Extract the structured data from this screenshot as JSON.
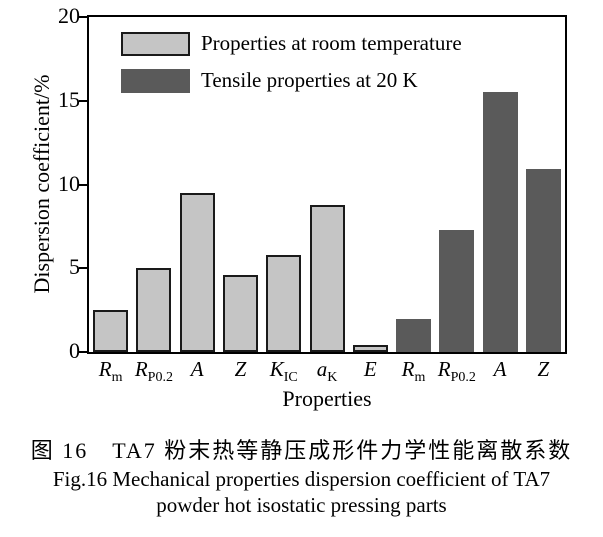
{
  "figure": {
    "caption_zh": "图 16　TA7 粉末热等静压成形件力学性能离散系数",
    "caption_en_line1": "Fig.16 Mechanical properties dispersion coefficient of TA7",
    "caption_en_line2": "powder hot isostatic pressing parts"
  },
  "chart_data": {
    "type": "bar",
    "title": "",
    "xlabel": "Properties",
    "ylabel": "Dispersion coefficient/%",
    "ylim": [
      0,
      20
    ],
    "yticks": [
      "0",
      "5",
      "10",
      "15",
      "20"
    ],
    "grid": false,
    "legend_position": "top-left",
    "axis_color": "#000000",
    "legend": [
      {
        "label": "Properties at room temperature",
        "color": "#c5c5c5",
        "border_color": "#1a1a1a",
        "bordered": true
      },
      {
        "label": "Tensile properties at 20 K",
        "color": "#5a5a5a",
        "border_color": "#5a5a5a",
        "bordered": false
      }
    ],
    "bars": [
      {
        "label_main": "R",
        "label_sub": "m",
        "value": 2.5,
        "series": 0
      },
      {
        "label_main": "R",
        "label_sub": "P0.2",
        "value": 5.0,
        "series": 0
      },
      {
        "label_main": "A",
        "label_sub": "",
        "value": 9.5,
        "series": 0
      },
      {
        "label_main": "Z",
        "label_sub": "",
        "value": 4.6,
        "series": 0
      },
      {
        "label_main": "K",
        "label_sub": "IC",
        "value": 5.8,
        "series": 0
      },
      {
        "label_main": "a",
        "label_sub": "K",
        "value": 8.8,
        "series": 0
      },
      {
        "label_main": "E",
        "label_sub": "",
        "value": 0.4,
        "series": 0
      },
      {
        "label_main": "R",
        "label_sub": "m",
        "value": 2.0,
        "series": 1
      },
      {
        "label_main": "R",
        "label_sub": "P0.2",
        "value": 7.3,
        "series": 1
      },
      {
        "label_main": "A",
        "label_sub": "",
        "value": 15.5,
        "series": 1
      },
      {
        "label_main": "Z",
        "label_sub": "",
        "value": 10.9,
        "series": 1
      }
    ]
  }
}
